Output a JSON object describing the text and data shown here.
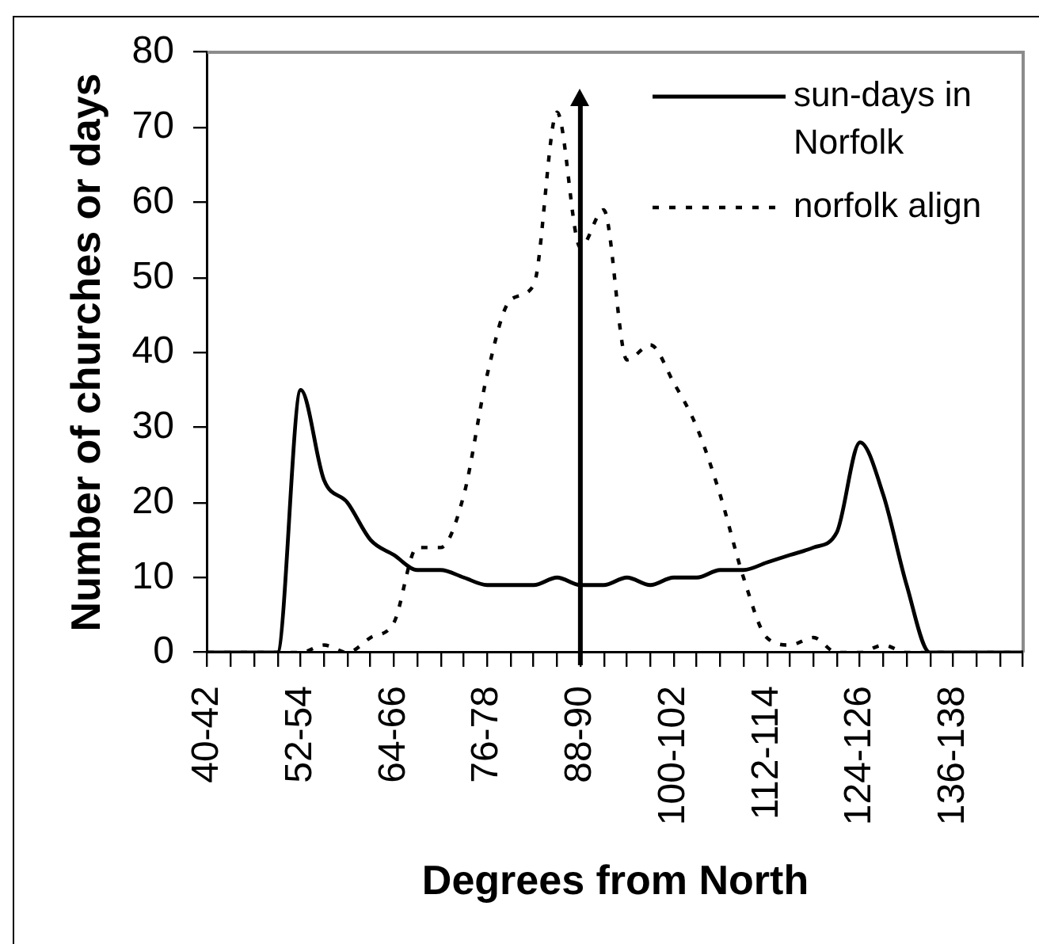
{
  "chart_data": {
    "type": "line",
    "xlabel": "Degrees from North",
    "ylabel": "Number of churches or days",
    "categories": [
      "40-42",
      null,
      null,
      null,
      "52-54",
      null,
      null,
      null,
      "64-66",
      null,
      null,
      null,
      "76-78",
      null,
      null,
      null,
      "88-90",
      null,
      null,
      null,
      "100-102",
      null,
      null,
      null,
      "112-114",
      null,
      null,
      null,
      "124-126",
      null,
      null,
      null,
      "136-138",
      null,
      null,
      null
    ],
    "series": [
      {
        "name": "sun-days in Norfolk",
        "color": "#000000",
        "line_style": "solid",
        "values": [
          0,
          0,
          0,
          0,
          35,
          23,
          20,
          15,
          13,
          11,
          11,
          10,
          9,
          9,
          9,
          10,
          9,
          9,
          10,
          9,
          10,
          10,
          11,
          11,
          12,
          13,
          14,
          16,
          28,
          21,
          9,
          0,
          0,
          0,
          0,
          0
        ]
      },
      {
        "name": "norfolk align",
        "color": "#000000",
        "line_style": "dashed",
        "values": [
          0,
          0,
          0,
          0,
          0,
          1,
          0,
          2,
          4,
          14,
          14,
          21,
          37,
          47,
          49,
          72,
          54,
          59,
          39,
          41,
          36,
          30,
          21,
          10,
          2,
          1,
          2,
          0,
          0,
          1,
          0,
          0,
          0,
          0,
          0,
          0
        ]
      }
    ],
    "ylim": [
      0,
      80
    ],
    "yticks": [
      0,
      10,
      20,
      30,
      40,
      50,
      60,
      70,
      80
    ],
    "grid": false,
    "legend": "top right",
    "marker": "none",
    "ref_lines": [
      {
        "axis": "x",
        "value": "88-90",
        "color": "#000000"
      }
    ]
  }
}
